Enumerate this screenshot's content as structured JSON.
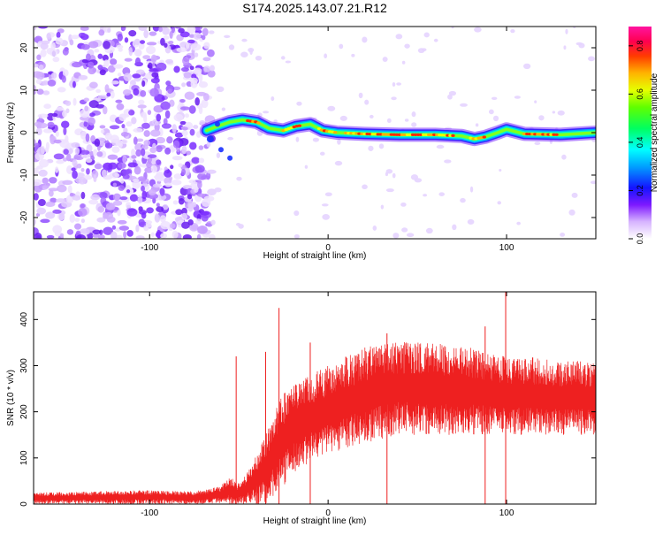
{
  "figure": {
    "title": "S174.2025.143.07.21.R12"
  },
  "chart_data": [
    {
      "type": "heatmap",
      "xlabel": "Height of straight line (km)",
      "ylabel": "Frequency (Hz)",
      "xlim": [
        -165,
        150
      ],
      "ylim": [
        -25,
        25
      ],
      "x_ticks": [
        "-100",
        "0",
        "100"
      ],
      "y_ticks": [
        "-20",
        "-10",
        "0",
        "10",
        "20"
      ],
      "colorbar": {
        "label": "Normalized spectral amplitude",
        "range": [
          0.0,
          0.88
        ],
        "ticks": [
          "0.0",
          "0.2",
          "0.4",
          "0.6",
          "0.8"
        ]
      },
      "ridge": {
        "description_points_x": [
          -68,
          -62,
          -55,
          -48,
          -40,
          -33,
          -25,
          -18,
          -10,
          -3,
          5,
          20,
          40,
          60,
          75,
          82,
          88,
          95,
          100,
          110,
          130,
          150
        ],
        "frequency_hz": [
          0.5,
          1.5,
          2.5,
          3.0,
          2.5,
          1.0,
          0.5,
          1.5,
          2.0,
          0.5,
          0.0,
          -0.3,
          -0.5,
          -0.5,
          -0.8,
          -1.5,
          -1.0,
          0.0,
          0.8,
          -0.3,
          -0.5,
          0.0
        ]
      },
      "noise_region_x": [
        -165,
        -68
      ]
    },
    {
      "type": "line",
      "xlabel": "Height of straight line (km)",
      "ylabel": "SNR (10 * v/v)",
      "xlim": [
        -165,
        150
      ],
      "ylim": [
        0,
        460
      ],
      "x_ticks": [
        "-100",
        "0",
        "100"
      ],
      "y_ticks": [
        "0",
        "100",
        "200",
        "300",
        "400"
      ],
      "color": "#ee2020",
      "envelope": {
        "x": [
          -165,
          -130,
          -100,
          -80,
          -70,
          -60,
          -55,
          -50,
          -45,
          -40,
          -35,
          -30,
          -25,
          -20,
          -15,
          -10,
          -5,
          0,
          10,
          20,
          30,
          40,
          50,
          60,
          70,
          80,
          90,
          100,
          110,
          120,
          130,
          140,
          150
        ],
        "upper": [
          25,
          28,
          30,
          28,
          30,
          40,
          60,
          45,
          70,
          110,
          150,
          200,
          240,
          260,
          270,
          280,
          290,
          300,
          320,
          340,
          350,
          355,
          350,
          350,
          340,
          340,
          330,
          320,
          320,
          315,
          310,
          310,
          310
        ],
        "lower": [
          0,
          0,
          0,
          0,
          0,
          0,
          0,
          0,
          0,
          0,
          0,
          20,
          40,
          60,
          80,
          90,
          100,
          110,
          120,
          130,
          140,
          150,
          150,
          150,
          150,
          150,
          150,
          150,
          150,
          150,
          150,
          150,
          150
        ]
      },
      "spikes": [
        {
          "x": -51.5,
          "y": 320
        },
        {
          "x": -35,
          "y": 330
        },
        {
          "x": -27.5,
          "y": 425
        },
        {
          "x": -10,
          "y": 350
        },
        {
          "x": 33,
          "y": 370
        },
        {
          "x": 88,
          "y": 385
        },
        {
          "x": 99.5,
          "y": 460
        }
      ]
    }
  ]
}
